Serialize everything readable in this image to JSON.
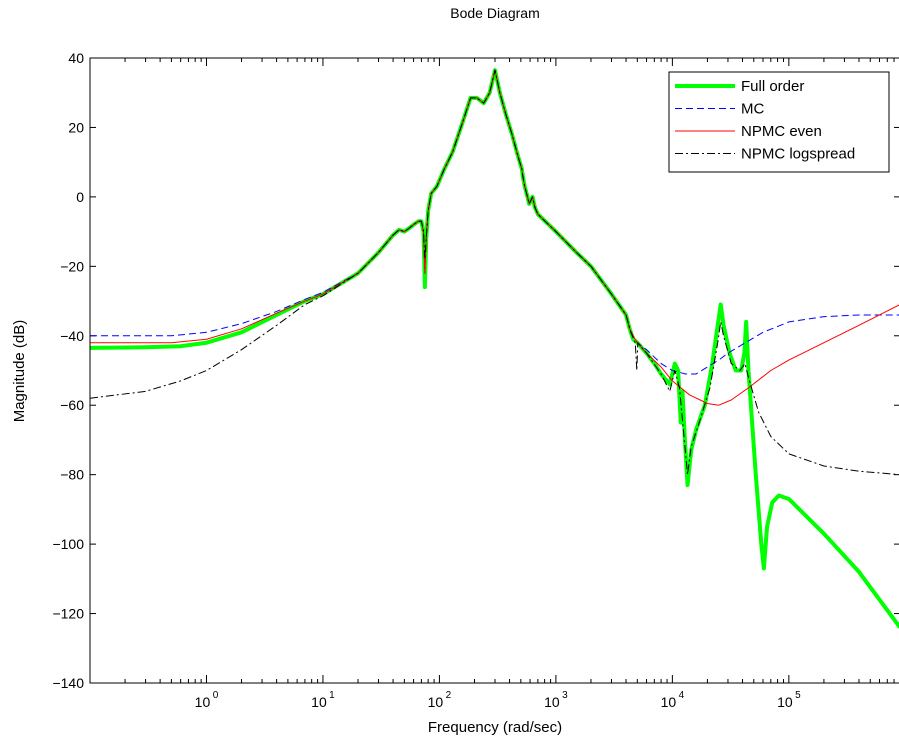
{
  "chart_data": {
    "type": "line",
    "title": "Bode Diagram",
    "xlabel": "Frequency  (rad/sec)",
    "ylabel": "Magnitude (dB)",
    "xscale": "log",
    "xlim": [
      0.1,
      900000
    ],
    "ylim": [
      -140,
      40
    ],
    "x_ticks": [
      1,
      10,
      100,
      1000,
      10000,
      100000
    ],
    "x_tick_labels": [
      {
        "base": "10",
        "exp": "0"
      },
      {
        "base": "10",
        "exp": "1"
      },
      {
        "base": "10",
        "exp": "2"
      },
      {
        "base": "10",
        "exp": "3"
      },
      {
        "base": "10",
        "exp": "4"
      },
      {
        "base": "10",
        "exp": "5"
      }
    ],
    "y_ticks": [
      -140,
      -120,
      -100,
      -80,
      -60,
      -40,
      -20,
      0,
      20,
      40
    ],
    "y_tick_labels": [
      "−140",
      "−120",
      "−100",
      "−80",
      "−60",
      "−40",
      "−20",
      "0",
      "20",
      "40"
    ],
    "grid": false,
    "legend_position": "top-right",
    "series": [
      {
        "name": "Full order",
        "color": "#00ff00",
        "style": "solid-thick",
        "points": [
          [
            0.1,
            -43.5
          ],
          [
            0.3,
            -43.3
          ],
          [
            0.6,
            -43
          ],
          [
            1,
            -42
          ],
          [
            2,
            -39
          ],
          [
            4,
            -34
          ],
          [
            7,
            -30
          ],
          [
            10,
            -28
          ],
          [
            20,
            -22
          ],
          [
            30,
            -16
          ],
          [
            40,
            -11
          ],
          [
            45,
            -9.5
          ],
          [
            50,
            -10
          ],
          [
            55,
            -9
          ],
          [
            60,
            -8
          ],
          [
            66,
            -7
          ],
          [
            70,
            -7
          ],
          [
            73,
            -10
          ],
          [
            75,
            -26
          ],
          [
            77,
            -12
          ],
          [
            80,
            -4
          ],
          [
            85,
            1
          ],
          [
            95,
            3
          ],
          [
            110,
            8
          ],
          [
            130,
            13
          ],
          [
            160,
            22
          ],
          [
            185,
            28.5
          ],
          [
            210,
            28.5
          ],
          [
            240,
            27
          ],
          [
            270,
            30
          ],
          [
            300,
            36.5
          ],
          [
            330,
            30
          ],
          [
            370,
            24
          ],
          [
            420,
            18
          ],
          [
            470,
            12
          ],
          [
            510,
            8
          ],
          [
            520,
            6
          ],
          [
            540,
            3
          ],
          [
            560,
            1
          ],
          [
            590,
            -2
          ],
          [
            610,
            -1
          ],
          [
            630,
            0
          ],
          [
            660,
            -3
          ],
          [
            700,
            -5
          ],
          [
            1000,
            -10
          ],
          [
            1500,
            -16
          ],
          [
            2000,
            -20
          ],
          [
            3000,
            -28
          ],
          [
            4000,
            -34
          ],
          [
            4300,
            -38
          ],
          [
            4600,
            -41
          ],
          [
            5000,
            -42
          ],
          [
            6000,
            -45
          ],
          [
            7000,
            -48
          ],
          [
            8000,
            -51
          ],
          [
            9500,
            -54
          ],
          [
            10500,
            -48
          ],
          [
            11200,
            -50
          ],
          [
            11800,
            -65
          ],
          [
            12200,
            -56
          ],
          [
            12800,
            -70
          ],
          [
            13500,
            -83
          ],
          [
            14500,
            -73
          ],
          [
            16000,
            -67
          ],
          [
            19000,
            -60
          ],
          [
            22000,
            -48
          ],
          [
            24500,
            -37
          ],
          [
            26000,
            -31
          ],
          [
            27500,
            -37
          ],
          [
            31000,
            -45
          ],
          [
            35000,
            -50
          ],
          [
            39000,
            -50
          ],
          [
            41500,
            -45
          ],
          [
            43000,
            -36
          ],
          [
            45000,
            -50
          ],
          [
            52000,
            -80
          ],
          [
            58000,
            -100
          ],
          [
            61000,
            -107
          ],
          [
            65000,
            -95
          ],
          [
            72000,
            -88
          ],
          [
            82000,
            -86
          ],
          [
            100000,
            -87
          ],
          [
            200000,
            -97
          ],
          [
            400000,
            -108
          ],
          [
            900000,
            -124
          ]
        ]
      },
      {
        "name": "MC",
        "color": "#0000ff",
        "style": "dashed",
        "points": [
          [
            0.1,
            -40
          ],
          [
            0.5,
            -40
          ],
          [
            1,
            -39
          ],
          [
            2,
            -36.5
          ],
          [
            4,
            -33
          ],
          [
            7,
            -29.5
          ],
          [
            10,
            -27.5
          ],
          [
            20,
            -22
          ],
          [
            30,
            -16
          ],
          [
            40,
            -11
          ],
          [
            45,
            -9.5
          ],
          [
            50,
            -10
          ],
          [
            55,
            -9
          ],
          [
            60,
            -8
          ],
          [
            66,
            -7
          ],
          [
            70,
            -7
          ],
          [
            73,
            -10
          ],
          [
            75,
            -22
          ],
          [
            77,
            -12
          ],
          [
            80,
            -4
          ],
          [
            85,
            1
          ],
          [
            95,
            3
          ],
          [
            110,
            8
          ],
          [
            130,
            13
          ],
          [
            160,
            22
          ],
          [
            185,
            28.5
          ],
          [
            210,
            28.5
          ],
          [
            240,
            27
          ],
          [
            270,
            30
          ],
          [
            300,
            36.5
          ],
          [
            330,
            30
          ],
          [
            370,
            24
          ],
          [
            420,
            18
          ],
          [
            470,
            12
          ],
          [
            510,
            8
          ],
          [
            520,
            6
          ],
          [
            540,
            3
          ],
          [
            560,
            1
          ],
          [
            590,
            -2
          ],
          [
            610,
            -1
          ],
          [
            630,
            0
          ],
          [
            660,
            -3
          ],
          [
            700,
            -5
          ],
          [
            1000,
            -10
          ],
          [
            1500,
            -16
          ],
          [
            2000,
            -20
          ],
          [
            3000,
            -28
          ],
          [
            4000,
            -34
          ],
          [
            4300,
            -38
          ],
          [
            4600,
            -40
          ],
          [
            5000,
            -42
          ],
          [
            6000,
            -44
          ],
          [
            8000,
            -48
          ],
          [
            10000,
            -50
          ],
          [
            13000,
            -51
          ],
          [
            16000,
            -51
          ],
          [
            20000,
            -49
          ],
          [
            25000,
            -47
          ],
          [
            30000,
            -45
          ],
          [
            40000,
            -42.5
          ],
          [
            60000,
            -39
          ],
          [
            100000,
            -36
          ],
          [
            200000,
            -34.5
          ],
          [
            400000,
            -34
          ],
          [
            900000,
            -34
          ]
        ]
      },
      {
        "name": "NPMC even",
        "color": "#ff0000",
        "style": "solid",
        "points": [
          [
            0.1,
            -42
          ],
          [
            0.5,
            -42
          ],
          [
            1,
            -41
          ],
          [
            2,
            -38
          ],
          [
            4,
            -33.5
          ],
          [
            7,
            -30
          ],
          [
            10,
            -28
          ],
          [
            20,
            -22
          ],
          [
            30,
            -16
          ],
          [
            40,
            -11
          ],
          [
            45,
            -9.5
          ],
          [
            50,
            -10
          ],
          [
            55,
            -9
          ],
          [
            60,
            -8
          ],
          [
            66,
            -7
          ],
          [
            70,
            -7
          ],
          [
            73,
            -10
          ],
          [
            75,
            -22
          ],
          [
            77,
            -12
          ],
          [
            80,
            -4
          ],
          [
            85,
            1
          ],
          [
            95,
            3
          ],
          [
            110,
            8
          ],
          [
            130,
            13
          ],
          [
            160,
            22
          ],
          [
            185,
            28.5
          ],
          [
            210,
            28.5
          ],
          [
            240,
            27
          ],
          [
            270,
            30
          ],
          [
            300,
            36.5
          ],
          [
            330,
            30
          ],
          [
            370,
            24
          ],
          [
            420,
            18
          ],
          [
            470,
            12
          ],
          [
            510,
            8
          ],
          [
            520,
            6
          ],
          [
            540,
            3
          ],
          [
            560,
            1
          ],
          [
            590,
            -2
          ],
          [
            610,
            -1
          ],
          [
            630,
            0
          ],
          [
            660,
            -3
          ],
          [
            700,
            -5
          ],
          [
            1000,
            -10
          ],
          [
            1500,
            -16
          ],
          [
            2000,
            -20
          ],
          [
            3000,
            -28
          ],
          [
            4000,
            -34
          ],
          [
            4300,
            -38
          ],
          [
            4600,
            -40
          ],
          [
            5000,
            -42
          ],
          [
            6000,
            -45
          ],
          [
            8000,
            -49
          ],
          [
            10000,
            -53
          ],
          [
            14000,
            -57
          ],
          [
            20000,
            -59.5
          ],
          [
            25000,
            -60
          ],
          [
            32000,
            -58.5
          ],
          [
            45000,
            -55
          ],
          [
            70000,
            -50
          ],
          [
            100000,
            -47
          ],
          [
            200000,
            -42
          ],
          [
            400000,
            -37
          ],
          [
            900000,
            -31
          ]
        ]
      },
      {
        "name": "NPMC logspread",
        "color": "#000000",
        "style": "dashdot",
        "points": [
          [
            0.1,
            -58
          ],
          [
            0.3,
            -56
          ],
          [
            0.6,
            -53
          ],
          [
            1,
            -50
          ],
          [
            2,
            -44
          ],
          [
            4,
            -37
          ],
          [
            7,
            -31
          ],
          [
            10,
            -28.5
          ],
          [
            20,
            -22
          ],
          [
            30,
            -16
          ],
          [
            40,
            -11
          ],
          [
            45,
            -9.5
          ],
          [
            50,
            -10
          ],
          [
            55,
            -9
          ],
          [
            60,
            -8
          ],
          [
            66,
            -7
          ],
          [
            70,
            -7
          ],
          [
            73,
            -10
          ],
          [
            75,
            -18
          ],
          [
            77,
            -12
          ],
          [
            80,
            -4
          ],
          [
            85,
            1
          ],
          [
            95,
            3
          ],
          [
            110,
            8
          ],
          [
            130,
            13
          ],
          [
            160,
            22
          ],
          [
            185,
            28.5
          ],
          [
            210,
            28.5
          ],
          [
            240,
            27
          ],
          [
            270,
            30
          ],
          [
            300,
            36.5
          ],
          [
            330,
            30
          ],
          [
            370,
            24
          ],
          [
            420,
            18
          ],
          [
            470,
            12
          ],
          [
            510,
            8
          ],
          [
            520,
            6
          ],
          [
            540,
            3
          ],
          [
            560,
            1
          ],
          [
            590,
            -2
          ],
          [
            610,
            -1
          ],
          [
            630,
            0
          ],
          [
            660,
            -3
          ],
          [
            700,
            -5
          ],
          [
            1000,
            -10
          ],
          [
            1500,
            -16
          ],
          [
            2000,
            -20
          ],
          [
            3000,
            -28
          ],
          [
            4000,
            -34
          ],
          [
            4400,
            -39
          ],
          [
            4800,
            -42
          ],
          [
            4950,
            -50
          ],
          [
            5050,
            -42
          ],
          [
            6000,
            -45
          ],
          [
            8000,
            -51
          ],
          [
            9500,
            -56
          ],
          [
            10500,
            -50
          ],
          [
            11500,
            -55
          ],
          [
            12500,
            -68
          ],
          [
            13500,
            -80
          ],
          [
            14500,
            -72
          ],
          [
            17000,
            -65
          ],
          [
            21000,
            -55
          ],
          [
            24500,
            -42
          ],
          [
            26000,
            -36
          ],
          [
            27500,
            -40
          ],
          [
            32000,
            -48
          ],
          [
            38000,
            -50
          ],
          [
            42000,
            -48
          ],
          [
            45000,
            -52
          ],
          [
            55000,
            -62
          ],
          [
            70000,
            -69
          ],
          [
            100000,
            -74
          ],
          [
            200000,
            -77.5
          ],
          [
            400000,
            -79
          ],
          [
            900000,
            -80
          ]
        ]
      }
    ]
  }
}
